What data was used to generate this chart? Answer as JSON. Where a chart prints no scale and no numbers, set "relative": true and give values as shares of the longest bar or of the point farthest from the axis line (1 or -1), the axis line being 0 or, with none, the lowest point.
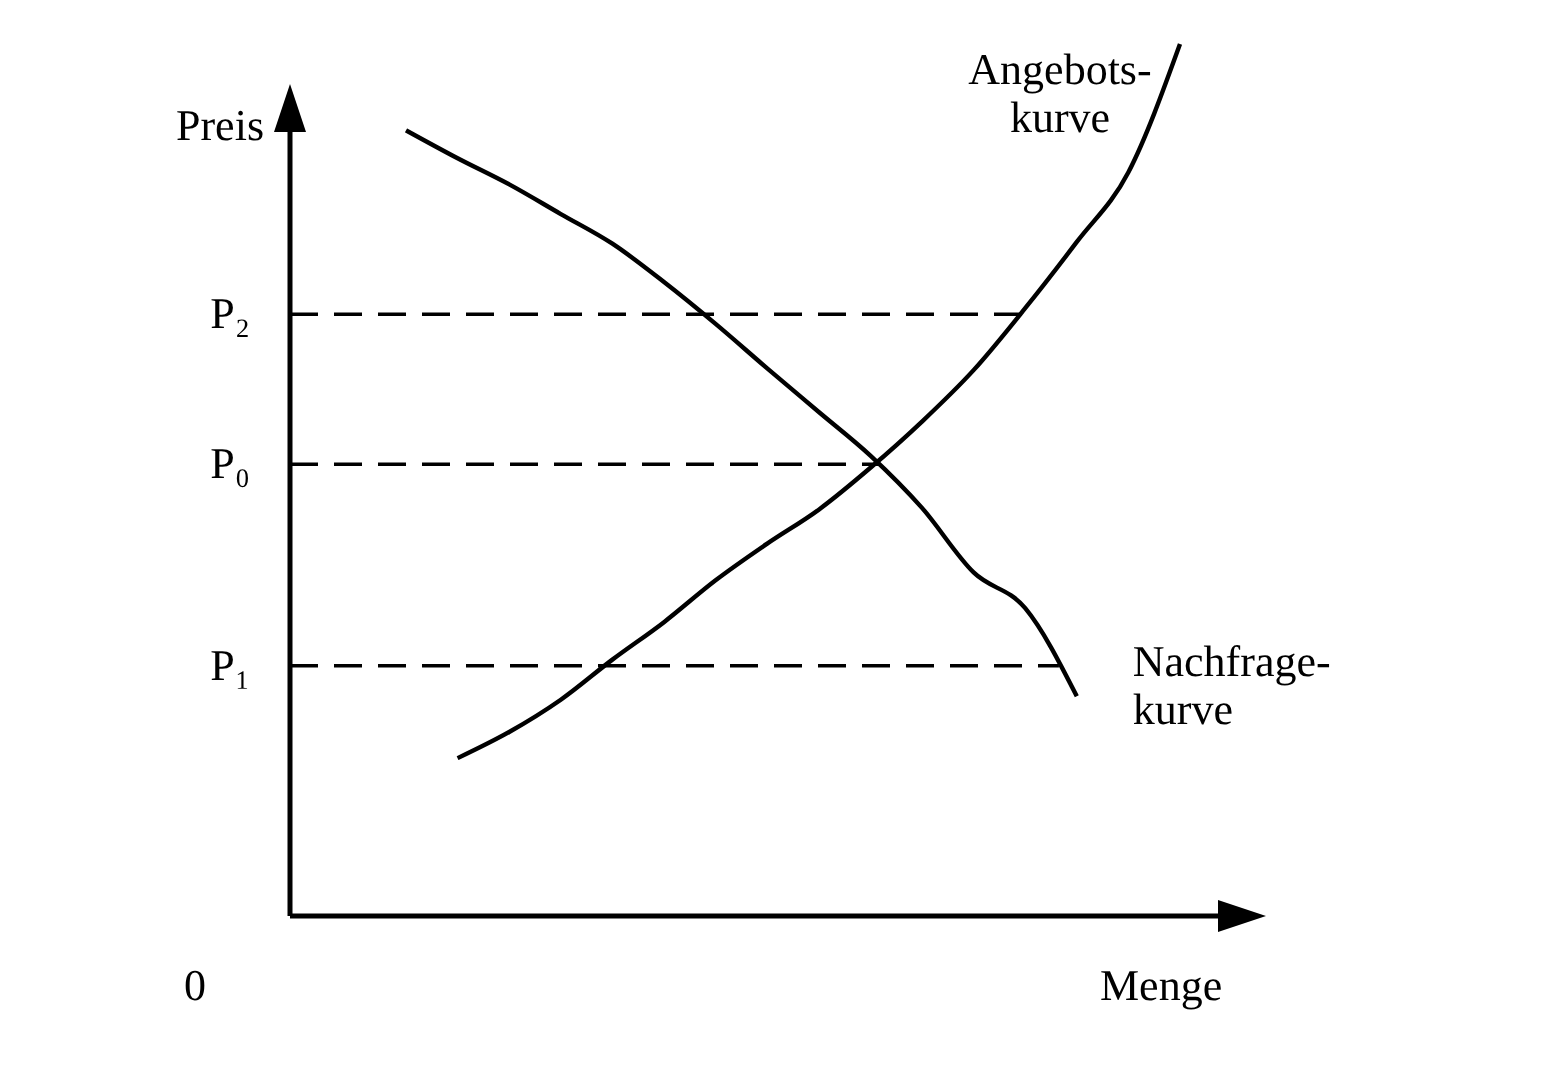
{
  "chart_data": {
    "type": "line",
    "relative": true,
    "xlabel": "Menge",
    "ylabel": "Preis",
    "annotations": [
      "0"
    ],
    "line_style": "solid",
    "marker": "none",
    "categories": [
      null,
      null,
      null,
      null,
      null,
      null,
      null,
      null,
      null,
      null,
      null,
      null,
      null,
      null,
      null,
      null
    ],
    "series": [
      {
        "name": "Angebots-\nkurve",
        "color": "#000000",
        "values": [
          null,
          0.181,
          0.211,
          0.248,
          0.294,
          0.337,
          0.385,
          0.427,
          0.466,
          0.514,
          0.567,
          0.626,
          0.697,
          0.773,
          0.853,
          1
        ]
      },
      {
        "name": "Nachfrage-\nkurve",
        "color": "#000000",
        "values": [
          0.901,
          0.869,
          0.839,
          0.805,
          0.771,
          0.727,
          0.679,
          0.628,
          0.578,
          0.528,
          0.468,
          0.394,
          0.353,
          0.252,
          null,
          null
        ]
      }
    ],
    "ref_lines": [
      {
        "axis": "y",
        "value": 0.69,
        "label": "P₂",
        "line_style": "dashed"
      },
      {
        "axis": "y",
        "value": 0.518,
        "label": "P₀",
        "line_style": "dashed"
      },
      {
        "axis": "y",
        "value": 0.287,
        "label": "P₁",
        "line_style": "dashed"
      }
    ]
  }
}
